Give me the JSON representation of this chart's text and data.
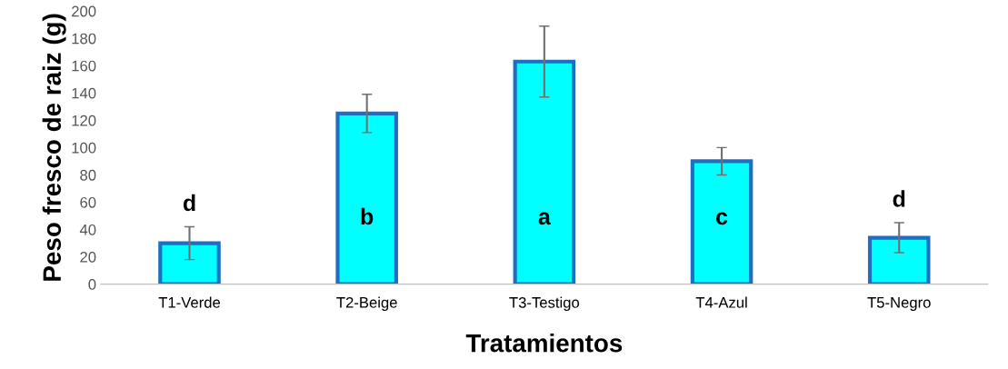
{
  "chart_data": {
    "type": "bar",
    "xlabel": "Tratamientos",
    "ylabel": "Peso fresco de raiz (g)",
    "categories": [
      "T1-Verde",
      "T2-Beige",
      "T3-Testigo",
      "T4-Azul",
      "T5-Negro"
    ],
    "values": [
      30,
      125,
      163,
      90,
      34
    ],
    "errors": [
      12,
      14,
      26,
      10,
      11
    ],
    "color": "#00ffff",
    "ylim": [
      0,
      200
    ],
    "yticks": [
      0,
      20,
      40,
      60,
      80,
      100,
      120,
      140,
      160,
      180,
      200
    ],
    "grid": false,
    "annotations": [
      "d",
      "b",
      "a",
      "c",
      "d"
    ]
  }
}
